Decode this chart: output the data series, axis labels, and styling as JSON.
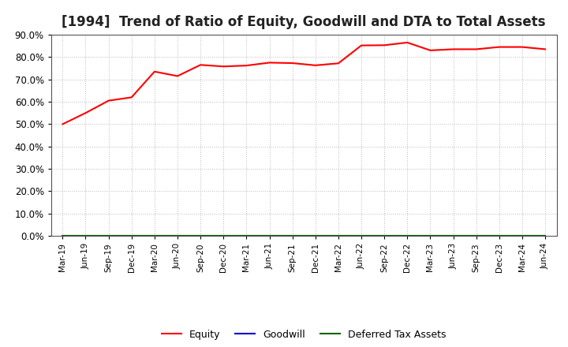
{
  "title": "[1994]  Trend of Ratio of Equity, Goodwill and DTA to Total Assets",
  "title_fontsize": 12,
  "x_labels": [
    "Mar-19",
    "Jun-19",
    "Sep-19",
    "Dec-19",
    "Mar-20",
    "Jun-20",
    "Sep-20",
    "Dec-20",
    "Mar-21",
    "Jun-21",
    "Sep-21",
    "Dec-21",
    "Mar-22",
    "Jun-22",
    "Sep-22",
    "Dec-22",
    "Mar-23",
    "Jun-23",
    "Sep-23",
    "Dec-23",
    "Mar-24",
    "Jun-24"
  ],
  "equity": [
    50.0,
    55.0,
    60.5,
    62.0,
    73.5,
    71.5,
    76.5,
    75.8,
    76.2,
    77.5,
    77.3,
    76.3,
    77.2,
    85.2,
    85.3,
    86.5,
    83.0,
    83.5,
    83.5,
    84.5,
    84.5,
    83.5
  ],
  "goodwill": [
    0,
    0,
    0,
    0,
    0,
    0,
    0,
    0,
    0,
    0,
    0,
    0,
    0,
    0,
    0,
    0,
    0,
    0,
    0,
    0,
    0,
    0
  ],
  "dta": [
    0,
    0,
    0,
    0,
    0,
    0,
    0,
    0,
    0,
    0,
    0,
    0,
    0,
    0,
    0,
    0,
    0,
    0,
    0,
    0,
    0,
    0
  ],
  "equity_color": "#FF0000",
  "goodwill_color": "#0000CC",
  "dta_color": "#006600",
  "ylim": [
    0,
    90
  ],
  "yticks": [
    0,
    10,
    20,
    30,
    40,
    50,
    60,
    70,
    80,
    90
  ],
  "grid_color": "#bbbbbb",
  "bg_color": "#ffffff",
  "plot_bg_color": "#ffffff",
  "legend_labels": [
    "Equity",
    "Goodwill",
    "Deferred Tax Assets"
  ]
}
